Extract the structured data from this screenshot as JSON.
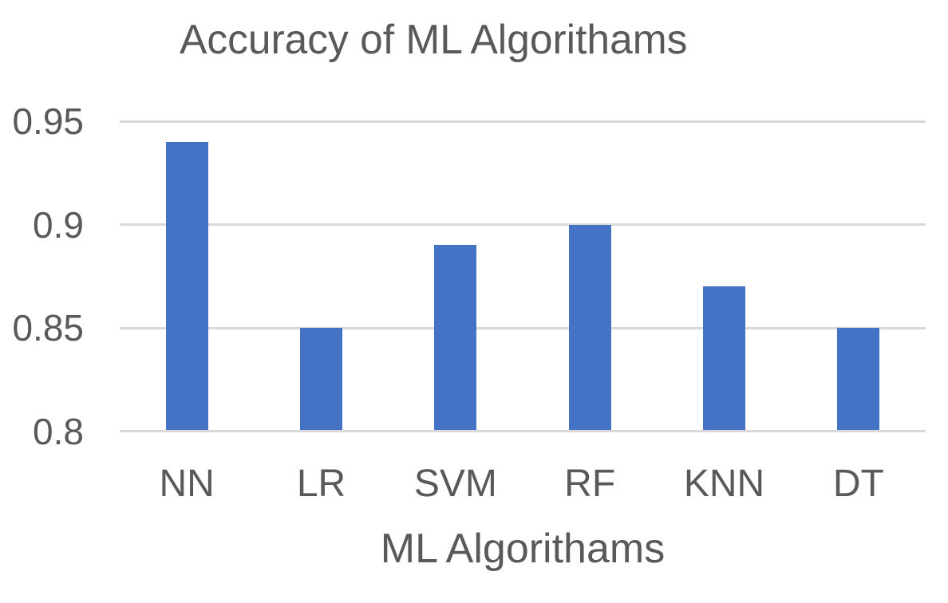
{
  "chart_data": {
    "type": "bar",
    "title": "Accuracy of ML Algorithams",
    "xlabel": "ML Algorithams",
    "ylabel": "",
    "categories": [
      "NN",
      "LR",
      "SVM",
      "RF",
      "KNN",
      "DT"
    ],
    "values": [
      0.94,
      0.85,
      0.89,
      0.9,
      0.87,
      0.85
    ],
    "ylim": [
      0.8,
      0.95
    ],
    "yticks": [
      0.8,
      0.85,
      0.9,
      0.95
    ],
    "ytick_labels": [
      "0.8",
      "0.85",
      "0.9",
      "0.95"
    ],
    "grid": "horizontal gridlines only",
    "legend_position": "none",
    "colors": {
      "bar": "#4472C4",
      "gridline": "#D9D9D9",
      "text": "#595959",
      "background": "#FFFFFF"
    }
  }
}
